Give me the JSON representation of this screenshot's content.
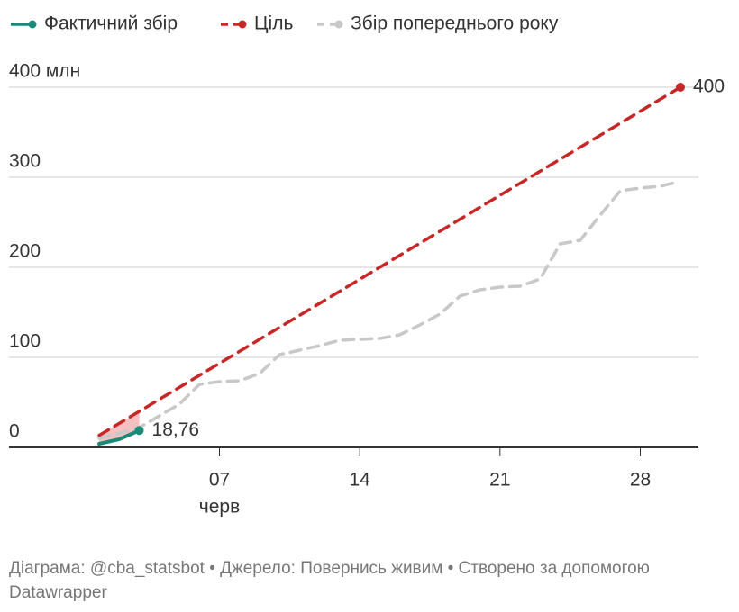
{
  "chart_data": {
    "type": "line",
    "series": [
      {
        "name": "Фактичний збір",
        "color": "#1a8a78",
        "dash": false,
        "x": [
          1,
          2,
          3
        ],
        "values": [
          4,
          9,
          18.76
        ],
        "value_labels": [
          null,
          null,
          "18,76"
        ]
      },
      {
        "name": "Ціль",
        "color": "#c62828",
        "dash": true,
        "x": [
          1,
          30
        ],
        "values": [
          13.33,
          400
        ],
        "value_labels": [
          null,
          "400"
        ]
      },
      {
        "name": "Збір попереднього року",
        "color": "#c8c8c8",
        "dash": true,
        "x": [
          1,
          2,
          3,
          4,
          5,
          6,
          7,
          8,
          9,
          10,
          11,
          12,
          13,
          14,
          15,
          16,
          17,
          18,
          19,
          20,
          21,
          22,
          23,
          24,
          25,
          26,
          27,
          28,
          29,
          29.7
        ],
        "values": [
          10,
          16,
          22,
          35,
          48,
          70,
          73,
          74,
          82,
          103,
          108,
          113,
          119,
          120,
          121,
          125,
          136,
          148,
          168,
          175,
          178,
          179,
          187,
          226,
          230,
          258,
          285,
          288,
          290,
          294
        ]
      }
    ],
    "xlim": [
      -3.5,
      30.9
    ],
    "xticks": [
      {
        "value": 7,
        "label": "07"
      },
      14,
      21,
      {
        "value": 28,
        "label": "28"
      }
    ],
    "x_month_label": "черв",
    "ylim": [
      0,
      400
    ],
    "yticks": [
      0,
      100,
      200,
      300,
      {
        "value": 400,
        "label": "400 млн"
      }
    ],
    "grid": true,
    "footer": "Діаграма: @cba_statsbot • Джерело: Повернись живим • Створено за допомогою Datawrapper"
  }
}
